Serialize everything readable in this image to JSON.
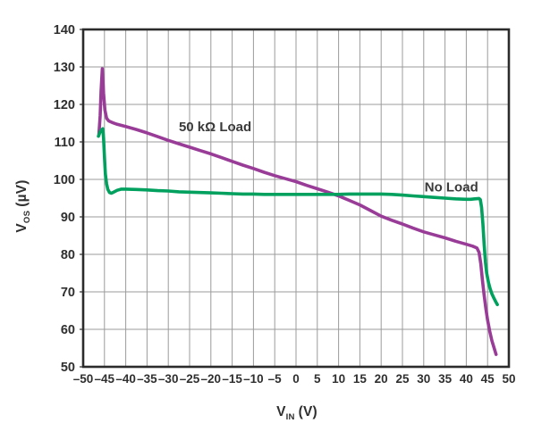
{
  "figure": {
    "background_color": "#ffffff",
    "grid_color": "#9b9b9b",
    "border_color": "#2b2b2b",
    "tick_text_color": "#2f2f2f",
    "annotation_text_color": "#3a3a3a"
  },
  "chart_data": {
    "type": "line",
    "title": "",
    "grid": true,
    "legend_position": "inline-annotations",
    "x_axis": {
      "label_main": "V",
      "label_sub": "IN",
      "label_unit": "(V)",
      "min": -50,
      "max": 50,
      "tick_step": 5,
      "tick_values": [
        -50,
        -45,
        -40,
        -35,
        -30,
        -25,
        -20,
        -15,
        -10,
        -5,
        0,
        5,
        10,
        15,
        20,
        25,
        30,
        35,
        40,
        45,
        50
      ],
      "tick_labels": [
        "–50",
        "–45",
        "–40",
        "–35",
        "–30",
        "–25",
        "–20",
        "–15",
        "–10",
        "–5",
        "0",
        "5",
        "10",
        "15",
        "20",
        "25",
        "30",
        "35",
        "40",
        "45",
        "50"
      ]
    },
    "y_axis": {
      "label_main": "V",
      "label_sub": "OS",
      "label_unit": "(µV)",
      "min": 50,
      "max": 140,
      "tick_step": 10,
      "tick_values": [
        50,
        60,
        70,
        80,
        90,
        100,
        110,
        120,
        130,
        140
      ],
      "tick_labels": [
        "50",
        "60",
        "70",
        "80",
        "90",
        "100",
        "110",
        "120",
        "130",
        "140"
      ]
    },
    "series": [
      {
        "name": "50 kΩ Load",
        "color": "#993C98",
        "label_pos": {
          "x": -19,
          "y": 114
        },
        "points": [
          [
            -46.3,
            112
          ],
          [
            -46,
            117
          ],
          [
            -45.8,
            123.5
          ],
          [
            -45.5,
            129.5
          ],
          [
            -45.2,
            123
          ],
          [
            -44.9,
            118.5
          ],
          [
            -44.5,
            116.3
          ],
          [
            -44,
            115.6
          ],
          [
            -43,
            115.1
          ],
          [
            -42,
            114.7
          ],
          [
            -40,
            114.1
          ],
          [
            -37.5,
            113.3
          ],
          [
            -35,
            112.4
          ],
          [
            -32.5,
            111.4
          ],
          [
            -30,
            110.4
          ],
          [
            -27.5,
            109.5
          ],
          [
            -25,
            108.6
          ],
          [
            -22.5,
            107.7
          ],
          [
            -20,
            106.8
          ],
          [
            -17.5,
            105.8
          ],
          [
            -15,
            104.8
          ],
          [
            -12.5,
            103.8
          ],
          [
            -10,
            102.9
          ],
          [
            -7.5,
            101.9
          ],
          [
            -5,
            101
          ],
          [
            -2.5,
            100.2
          ],
          [
            0,
            99.4
          ],
          [
            2.5,
            98.4
          ],
          [
            5,
            97.5
          ],
          [
            7.5,
            96.6
          ],
          [
            10,
            95.6
          ],
          [
            12.5,
            94.4
          ],
          [
            15,
            93.2
          ],
          [
            17.5,
            91.7
          ],
          [
            20,
            90.2
          ],
          [
            22.5,
            89.1
          ],
          [
            25,
            88.1
          ],
          [
            27.5,
            87
          ],
          [
            30,
            86
          ],
          [
            32.5,
            85.2
          ],
          [
            35,
            84.4
          ],
          [
            37.5,
            83.5
          ],
          [
            40,
            82.7
          ],
          [
            41.5,
            82.2
          ],
          [
            42.5,
            81.7
          ],
          [
            43,
            80.5
          ],
          [
            43.4,
            77.5
          ],
          [
            43.8,
            73
          ],
          [
            44.2,
            69
          ],
          [
            44.6,
            65.5
          ],
          [
            45,
            62.5
          ],
          [
            45.5,
            59.5
          ],
          [
            46,
            57
          ],
          [
            46.5,
            55.2
          ],
          [
            47,
            53.3
          ]
        ]
      },
      {
        "name": "No Load",
        "color": "#00A05F",
        "label_pos": {
          "x": 36.5,
          "y": 98
        },
        "points": [
          [
            -46.4,
            111.5
          ],
          [
            -46.1,
            112.5
          ],
          [
            -45.7,
            113.2
          ],
          [
            -45.4,
            113.5
          ],
          [
            -45.2,
            111
          ],
          [
            -45,
            106
          ],
          [
            -44.8,
            101.5
          ],
          [
            -44.5,
            98.8
          ],
          [
            -44.2,
            97.3
          ],
          [
            -43.8,
            96.5
          ],
          [
            -43.4,
            96.3
          ],
          [
            -43,
            96.5
          ],
          [
            -42,
            97.1
          ],
          [
            -41,
            97.4
          ],
          [
            -40,
            97.4
          ],
          [
            -37.5,
            97.3
          ],
          [
            -35,
            97.2
          ],
          [
            -32.5,
            97
          ],
          [
            -30,
            96.9
          ],
          [
            -27.5,
            96.7
          ],
          [
            -25,
            96.6
          ],
          [
            -22.5,
            96.5
          ],
          [
            -20,
            96.4
          ],
          [
            -17.5,
            96.3
          ],
          [
            -15,
            96.2
          ],
          [
            -12.5,
            96.1
          ],
          [
            -10,
            96.1
          ],
          [
            -7.5,
            96
          ],
          [
            -5,
            96
          ],
          [
            -2.5,
            96
          ],
          [
            0,
            96
          ],
          [
            2.5,
            96
          ],
          [
            5,
            96
          ],
          [
            7.5,
            96
          ],
          [
            10,
            96
          ],
          [
            12.5,
            96.1
          ],
          [
            15,
            96.1
          ],
          [
            17.5,
            96.1
          ],
          [
            20,
            96.1
          ],
          [
            22.5,
            96
          ],
          [
            25,
            95.8
          ],
          [
            27.5,
            95.6
          ],
          [
            30,
            95.4
          ],
          [
            32.5,
            95.2
          ],
          [
            35,
            95
          ],
          [
            37.5,
            94.8
          ],
          [
            40,
            94.7
          ],
          [
            41,
            94.7
          ],
          [
            42,
            94.8
          ],
          [
            43,
            94.9
          ],
          [
            43.3,
            94.6
          ],
          [
            43.6,
            92.5
          ],
          [
            43.9,
            88
          ],
          [
            44.2,
            82.5
          ],
          [
            44.5,
            78
          ],
          [
            44.8,
            75
          ],
          [
            45.2,
            72.5
          ],
          [
            45.6,
            70.8
          ],
          [
            46,
            69.5
          ],
          [
            46.5,
            68.3
          ],
          [
            47,
            67.2
          ],
          [
            47.3,
            66.6
          ]
        ]
      }
    ]
  }
}
